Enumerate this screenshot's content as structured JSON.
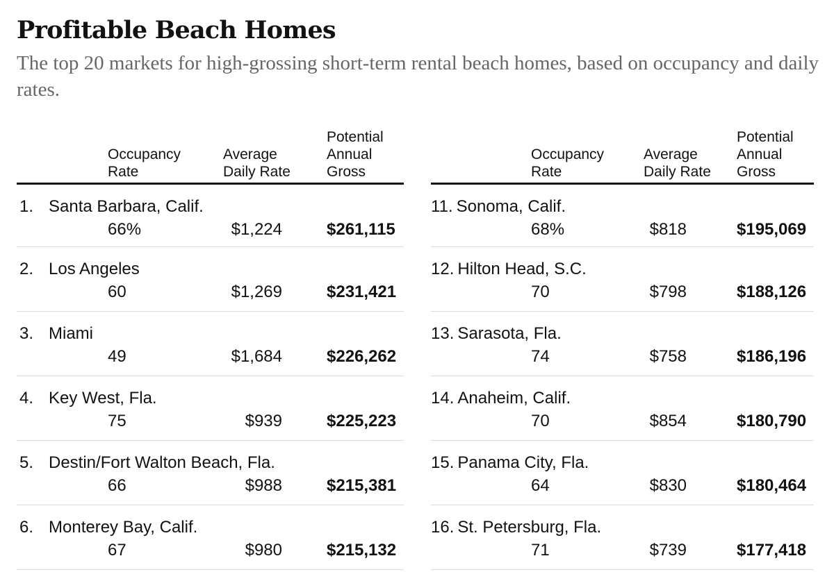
{
  "title": "Profitable Beach Homes",
  "subtitle": "The top 20 markets for high-grossing short-term rental beach homes, based on occupancy and daily rates.",
  "columns": {
    "occupancy": [
      "Occupancy",
      "Rate"
    ],
    "daily_rate": [
      "Average",
      "Daily Rate"
    ],
    "gross": [
      "Potential",
      "Annual",
      "Gross"
    ]
  },
  "left_rows": [
    {
      "rank": "1.",
      "name": "Santa Barbara, Calif.",
      "occupancy": "66%",
      "daily_rate": "$1,224",
      "gross": "$261,115"
    },
    {
      "rank": "2.",
      "name": "Los Angeles",
      "occupancy": "60",
      "daily_rate": "$1,269",
      "gross": "$231,421"
    },
    {
      "rank": "3.",
      "name": "Miami",
      "occupancy": "49",
      "daily_rate": "$1,684",
      "gross": "$226,262"
    },
    {
      "rank": "4.",
      "name": "Key West, Fla.",
      "occupancy": "75",
      "daily_rate": "$939",
      "gross": "$225,223"
    },
    {
      "rank": "5.",
      "name": "Destin/Fort Walton Beach, Fla.",
      "occupancy": "66",
      "daily_rate": "$988",
      "gross": "$215,381"
    },
    {
      "rank": "6.",
      "name": "Monterey Bay, Calif.",
      "occupancy": "67",
      "daily_rate": "$980",
      "gross": "$215,132"
    }
  ],
  "right_rows": [
    {
      "rank": "11.",
      "name": "Sonoma, Calif.",
      "occupancy": "68%",
      "daily_rate": "$818",
      "gross": "$195,069"
    },
    {
      "rank": "12.",
      "name": "Hilton Head, S.C.",
      "occupancy": "70",
      "daily_rate": "$798",
      "gross": "$188,126"
    },
    {
      "rank": "13.",
      "name": "Sarasota, Fla.",
      "occupancy": "74",
      "daily_rate": "$758",
      "gross": "$186,196"
    },
    {
      "rank": "14.",
      "name": "Anaheim, Calif.",
      "occupancy": "70",
      "daily_rate": "$854",
      "gross": "$180,790"
    },
    {
      "rank": "15.",
      "name": "Panama City, Fla.",
      "occupancy": "64",
      "daily_rate": "$830",
      "gross": "$180,464"
    },
    {
      "rank": "16.",
      "name": "St. Petersburg, Fla.",
      "occupancy": "71",
      "daily_rate": "$739",
      "gross": "$177,418"
    }
  ]
}
